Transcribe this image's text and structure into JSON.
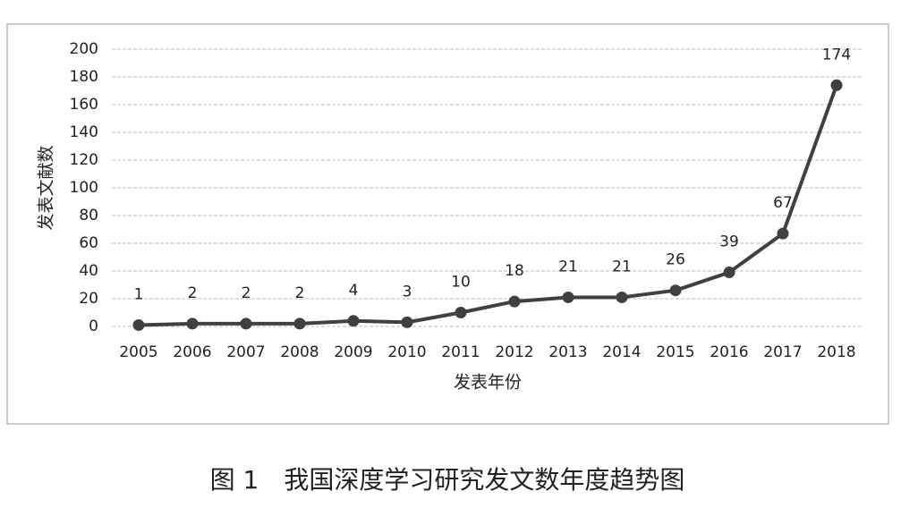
{
  "chart_data": {
    "type": "line",
    "categories": [
      "2005",
      "2006",
      "2007",
      "2008",
      "2009",
      "2010",
      "2011",
      "2012",
      "2013",
      "2014",
      "2015",
      "2016",
      "2017",
      "2018"
    ],
    "values": [
      1,
      2,
      2,
      2,
      4,
      3,
      10,
      18,
      21,
      21,
      26,
      39,
      67,
      174
    ],
    "color": "#404040",
    "x_label": "发表年份",
    "y_label": "发表文献数",
    "ylim": [
      0,
      200
    ],
    "yticks": [
      0,
      20,
      40,
      60,
      80,
      100,
      120,
      140,
      160,
      180,
      200
    ],
    "grid": true
  },
  "caption": "图 1　我国深度学习研究发文数年度趋势图"
}
